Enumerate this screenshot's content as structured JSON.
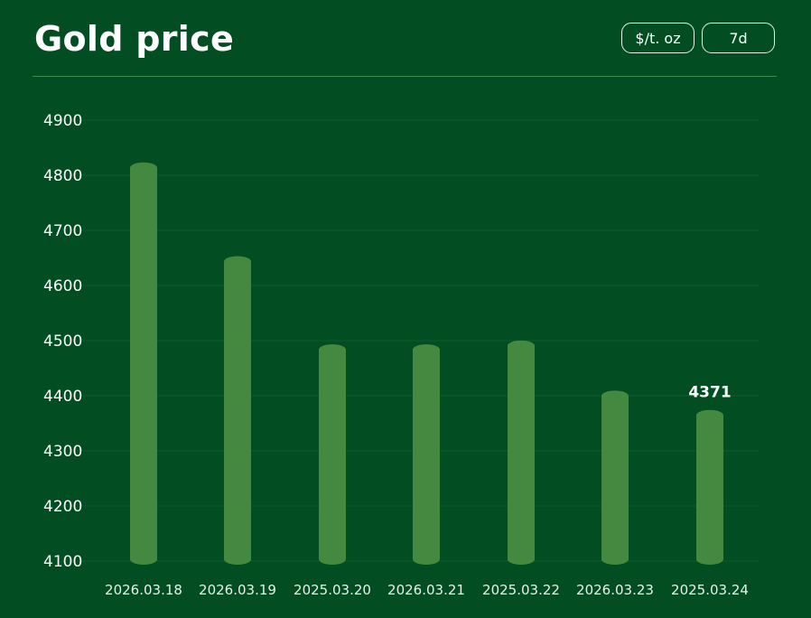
{
  "header": {
    "title": "Gold price",
    "unit_label": "$/t. oz",
    "range_label": "7d"
  },
  "colors": {
    "background": "#024d22",
    "bar": "#458940",
    "grid": "#0c5a2a",
    "divider": "#3f8a4f"
  },
  "chart_data": {
    "type": "bar",
    "title": "Gold price",
    "xlabel": "",
    "ylabel": "",
    "categories": [
      "2026.03.18",
      "2026.03.19",
      "2025.03.20",
      "2026.03.21",
      "2025.03.22",
      "2026.03.23",
      "2025.03.24"
    ],
    "values": [
      4820,
      4650,
      4490,
      4490,
      4497,
      4406,
      4371
    ],
    "ylim": [
      4100,
      4900
    ],
    "yticks": [
      4100,
      4200,
      4300,
      4400,
      4500,
      4600,
      4700,
      4800,
      4900
    ],
    "grid": true,
    "data_labels": [
      {
        "index": 6,
        "text": "4371"
      }
    ]
  }
}
